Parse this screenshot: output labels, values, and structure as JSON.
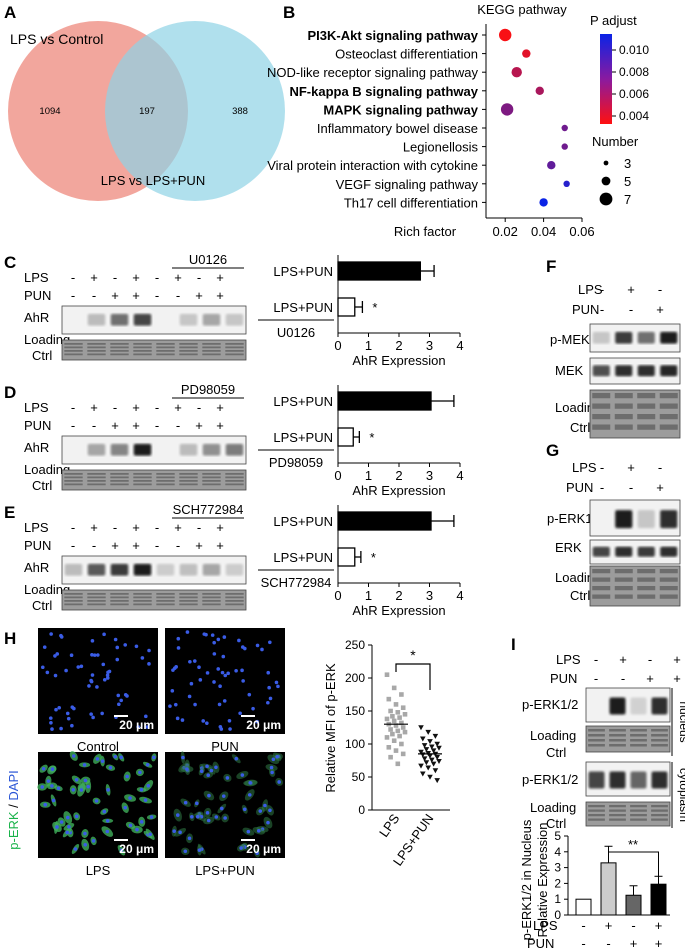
{
  "panels": {
    "A": {
      "letter": "A",
      "label_top": "LPS vs Control",
      "label_bottom": "LPS vs LPS+PUN",
      "left_only": "1094",
      "overlap": "197",
      "right_only": "388",
      "colors": {
        "left": "#f0968c",
        "right": "#8fd3e6"
      }
    },
    "B": {
      "letter": "B",
      "title": "KEGG pathway",
      "legend_padj_title": "P adjust",
      "legend_padj_ticks": [
        "0.010",
        "0.008",
        "0.006",
        "0.004"
      ],
      "legend_number_title": "Number",
      "legend_number_ticks": [
        "3",
        "5",
        "7"
      ],
      "xlabel": "Rich factor",
      "xticks": [
        "0.02",
        "0.04",
        "0.06"
      ]
    },
    "C": {
      "letter": "C",
      "inhibitor": "U0126"
    },
    "D": {
      "letter": "D",
      "inhibitor": "PD98059"
    },
    "E": {
      "letter": "E",
      "inhibitor": "SCH772984"
    },
    "F": {
      "letter": "F"
    },
    "G": {
      "letter": "G"
    },
    "H": {
      "letter": "H",
      "stain_label_green": "p-ERK",
      "stain_label_sep": " / ",
      "stain_label_blue": "DAPI",
      "scale_bar": "20 μm",
      "image_labels": [
        "Control",
        "PUN",
        "LPS",
        "LPS+PUN"
      ],
      "plot_ylabel": "Relative MFI of p-ERK",
      "plot_yticks": [
        "0",
        "50",
        "100",
        "150",
        "200",
        "250"
      ],
      "plot_categories": [
        "LPS",
        "LPS+PUN"
      ],
      "significance": "*"
    },
    "I": {
      "letter": "I",
      "nucleus_label": "nucleus",
      "cytoplasm_label": "cytoplasm",
      "ylabel_line1": "p-ERK1/2  in Nucleus",
      "ylabel_line2": "Relative Expression",
      "yticks": [
        "0",
        "1",
        "2",
        "3",
        "4",
        "5"
      ],
      "significance": "**"
    }
  },
  "blot_labels": {
    "lps": "LPS",
    "pun": "PUN",
    "ahr": "AhR",
    "loading_line1": "Loading",
    "loading_line2": "Ctrl",
    "p_mek": "p-MEK",
    "mek": "MEK",
    "p_erk": "p-ERK1/2",
    "erk": "ERK",
    "plus": "+",
    "minus": "-",
    "lps_pun": "LPS+PUN",
    "ahr_expression": "AhR Expression",
    "star": "*"
  },
  "bar_xticks": [
    "0",
    "1",
    "2",
    "3",
    "4"
  ],
  "chart_data": [
    {
      "type": "scatter",
      "panel": "B",
      "title": "KEGG pathway",
      "xlabel": "Rich factor",
      "xlim": [
        0.01,
        0.06
      ],
      "categories": [
        "PI3K-Akt signaling pathway",
        "Osteoclast differentiation",
        "NOD-like receptor signaling pathway",
        "NF-kappa B signaling pathway",
        "MAPK signaling pathway",
        "Inflammatory bowel disease",
        "Legionellosis",
        "Viral protein interaction with cytokine",
        "VEGF signaling pathway",
        "Th17 cell differentiation"
      ],
      "bold": [
        true,
        false,
        false,
        true,
        true,
        false,
        false,
        false,
        false,
        false
      ],
      "x": [
        0.02,
        0.031,
        0.026,
        0.038,
        0.021,
        0.051,
        0.051,
        0.044,
        0.052,
        0.04
      ],
      "number": [
        7,
        5,
        6,
        5,
        7,
        4,
        4,
        5,
        4,
        5
      ],
      "padj": [
        0.0032,
        0.004,
        0.0055,
        0.006,
        0.0075,
        0.008,
        0.008,
        0.0085,
        0.0105,
        0.0115
      ]
    },
    {
      "type": "bar",
      "panel": "C",
      "orientation": "horizontal",
      "xlabel": "AhR Expression",
      "xlim": [
        0,
        4
      ],
      "categories": [
        "LPS+PUN",
        "LPS+PUN + U0126"
      ],
      "values": [
        2.7,
        0.55
      ],
      "errors": [
        0.45,
        0.25
      ],
      "significance": [
        "",
        "*"
      ]
    },
    {
      "type": "bar",
      "panel": "D",
      "orientation": "horizontal",
      "xlabel": "AhR Expression",
      "xlim": [
        0,
        4
      ],
      "categories": [
        "LPS+PUN",
        "LPS+PUN + PD98059"
      ],
      "values": [
        3.05,
        0.5
      ],
      "errors": [
        0.75,
        0.2
      ],
      "significance": [
        "",
        "*"
      ]
    },
    {
      "type": "bar",
      "panel": "E",
      "orientation": "horizontal",
      "xlabel": "AhR Expression",
      "xlim": [
        0,
        4
      ],
      "categories": [
        "LPS+PUN",
        "LPS+PUN + SCH772984"
      ],
      "values": [
        3.05,
        0.55
      ],
      "errors": [
        0.75,
        0.2
      ],
      "significance": [
        "",
        "*"
      ]
    },
    {
      "type": "scatter",
      "panel": "H",
      "ylabel": "Relative MFI of p-ERK",
      "ylim": [
        0,
        250
      ],
      "categories": [
        "LPS",
        "LPS+PUN"
      ],
      "series": [
        {
          "values": [
            205,
            185,
            175,
            168,
            160,
            155,
            150,
            148,
            145,
            142,
            140,
            138,
            135,
            132,
            130,
            128,
            125,
            122,
            120,
            118,
            115,
            112,
            110,
            105,
            100,
            95,
            90,
            85,
            80,
            70
          ]
        },
        {
          "values": [
            125,
            118,
            112,
            108,
            104,
            100,
            98,
            96,
            94,
            92,
            90,
            88,
            86,
            85,
            84,
            82,
            80,
            78,
            76,
            74,
            72,
            70,
            67,
            64,
            60,
            55,
            50,
            45
          ]
        }
      ],
      "significance": "*"
    },
    {
      "type": "bar",
      "panel": "I",
      "ylabel": "p-ERK1/2  in Nucleus Relative Expression",
      "ylim": [
        0,
        5
      ],
      "categories": [
        "Control",
        "LPS",
        "PUN",
        "LPS+PUN"
      ],
      "values": [
        1.0,
        3.3,
        1.25,
        1.95
      ],
      "errors": [
        0,
        1.05,
        0.6,
        0.5
      ],
      "colors": [
        "#ffffff",
        "#cccccc",
        "#666666",
        "#000000"
      ],
      "significance": "**"
    }
  ]
}
